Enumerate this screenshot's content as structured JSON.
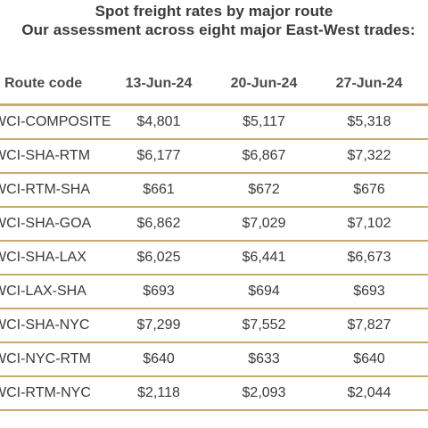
{
  "title": "Spot freight rates by major route",
  "subtitle": "Our assessment across eight major East-West trades:",
  "table": {
    "headers": [
      "Route code",
      "13-Jun-24",
      "20-Jun-24",
      "27-Jun-24"
    ],
    "rows": [
      {
        "route": "WCI-COMPOSITE",
        "v1": "$4,801",
        "v2": "$5,117",
        "v3": "$5,318"
      },
      {
        "route": "WCI-SHA-RTM",
        "v1": "$6,177",
        "v2": "$6,867",
        "v3": "$7,322"
      },
      {
        "route": "WCI-RTM-SHA",
        "v1": "$661",
        "v2": "$672",
        "v3": "$676"
      },
      {
        "route": "WCI-SHA-GOA",
        "v1": "$6,862",
        "v2": "$7,029",
        "v3": "$7,102"
      },
      {
        "route": "WCI-SHA-LAX",
        "v1": "$6,025",
        "v2": "$6,441",
        "v3": "$6,673"
      },
      {
        "route": "WCI-LAX-SHA",
        "v1": "$693",
        "v2": "$694",
        "v3": "$693"
      },
      {
        "route": "WCI-SHA-NYC",
        "v1": "$7,299",
        "v2": "$7,552",
        "v3": "$7,827"
      },
      {
        "route": "WCI-NYC-RTM",
        "v1": "$640",
        "v2": "$633",
        "v3": "$640"
      },
      {
        "route": "WCI-RTM-NYC",
        "v1": "$2,118",
        "v2": "$2,093",
        "v3": "$2,044"
      }
    ]
  },
  "colors": {
    "rule": "#c8aa6e",
    "text": "#3a3a3a"
  }
}
